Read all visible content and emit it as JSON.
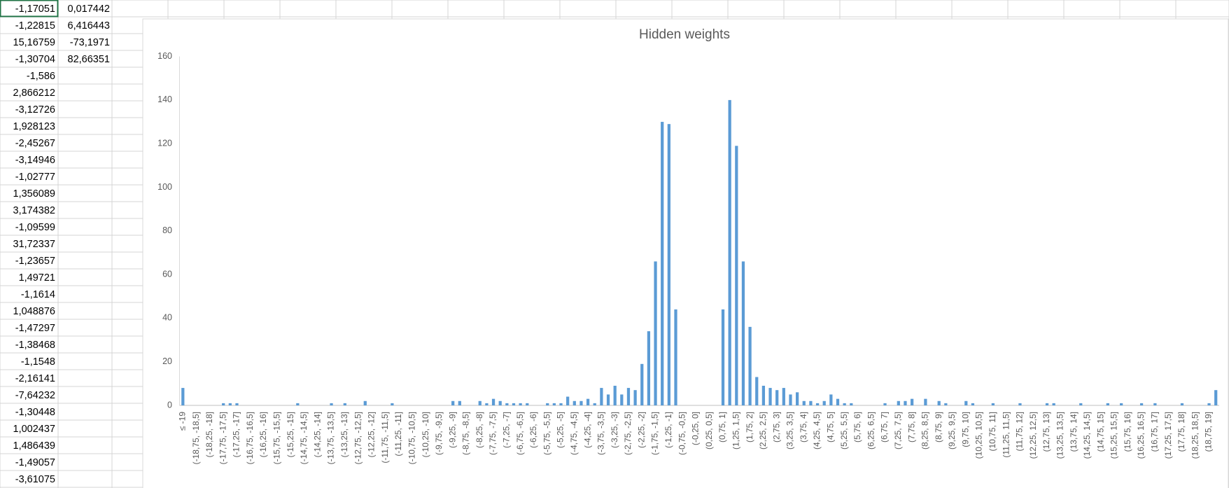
{
  "sheet": {
    "column_a": [
      "-1,17051",
      "-1,22815",
      "15,16759",
      "-1,30704",
      "-1,586",
      "2,866212",
      "-3,12726",
      "1,928123",
      "-2,45267",
      "-3,14946",
      "-1,02777",
      "1,356089",
      "3,174382",
      "-1,09599",
      "31,72337",
      "-1,23657",
      "1,49721",
      "-1,1614",
      "1,048876",
      "-1,47297",
      "-1,38468",
      "-1,1548",
      "-2,16141",
      "-7,64232",
      "-1,30448",
      "1,002437",
      "1,486439",
      "-1,49057",
      "-3,61075"
    ],
    "column_b": [
      "0,017442",
      "6,416443",
      "-73,1971",
      "82,66351"
    ]
  },
  "chart_data": {
    "type": "bar",
    "title": "Hidden weights",
    "color": "#5b9bd5",
    "grid": false,
    "ylim": [
      0,
      160
    ],
    "yticks": [
      0,
      20,
      40,
      60,
      80,
      100,
      120,
      140,
      160
    ],
    "categories": [
      "≤ -19",
      null,
      "(-18,75, -18,5]",
      null,
      "(-18,25, -18]",
      null,
      "(-17,75, -17,5]",
      null,
      "(-17,25, -17]",
      null,
      "(-16,75, -16,5]",
      null,
      "(-16,25, -16]",
      null,
      "(-15,75, -15,5]",
      null,
      "(-15,25, -15]",
      null,
      "(-14,75, -14,5]",
      null,
      "(-14,25, -14]",
      null,
      "(-13,75, -13,5]",
      null,
      "(-13,25, -13]",
      null,
      "(-12,75, -12,5]",
      null,
      "(-12,25, -12]",
      null,
      "(-11,75, -11,5]",
      null,
      "(-11,25, -11]",
      null,
      "(-10,75, -10,5]",
      null,
      "(-10,25, -10]",
      null,
      "(-9,75, -9,5]",
      null,
      "(-9,25, -9]",
      null,
      "(-8,75, -8,5]",
      null,
      "(-8,25, -8]",
      null,
      "(-7,75, -7,5]",
      null,
      "(-7,25, -7]",
      null,
      "(-6,75, -6,5]",
      null,
      "(-6,25, -6]",
      null,
      "(-5,75, -5,5]",
      null,
      "(-5,25, -5]",
      null,
      "(-4,75, -4,5]",
      null,
      "(-4,25, -4]",
      null,
      "(-3,75, -3,5]",
      null,
      "(-3,25, -3]",
      null,
      "(-2,75, -2,5]",
      null,
      "(-2,25, -2]",
      null,
      "(-1,75, -1,5]",
      null,
      "(-1,25, -1]",
      null,
      "(-0,75, -0,5]",
      null,
      "(-0,25, 0]",
      null,
      "(0,25, 0,5]",
      null,
      "(0,75, 1]",
      null,
      "(1,25, 1,5]",
      null,
      "(1,75, 2]",
      null,
      "(2,25, 2,5]",
      null,
      "(2,75, 3]",
      null,
      "(3,25, 3,5]",
      null,
      "(3,75, 4]",
      null,
      "(4,25, 4,5]",
      null,
      "(4,75, 5]",
      null,
      "(5,25, 5,5]",
      null,
      "(5,75, 6]",
      null,
      "(6,25, 6,5]",
      null,
      "(6,75, 7]",
      null,
      "(7,25, 7,5]",
      null,
      "(7,75, 8]",
      null,
      "(8,25, 8,5]",
      null,
      "(8,75, 9]",
      null,
      "(9,25, 9,5]",
      null,
      "(9,75, 10]",
      null,
      "(10,25, 10,5]",
      null,
      "(10,75, 11]",
      null,
      "(11,25, 11,5]",
      null,
      "(11,75, 12]",
      null,
      "(12,25, 12,5]",
      null,
      "(12,75, 13]",
      null,
      "(13,25, 13,5]",
      null,
      "(13,75, 14]",
      null,
      "(14,25, 14,5]",
      null,
      "(14,75, 15]",
      null,
      "(15,25, 15,5]",
      null,
      "(15,75, 16]",
      null,
      "(16,25, 16,5]",
      null,
      "(16,75, 17]",
      null,
      "(17,25, 17,5]",
      null,
      "(17,75, 18]",
      null,
      "(18,25, 18,5]",
      null,
      "(18,75, 19]",
      null
    ],
    "values": [
      8,
      0,
      0,
      0,
      0,
      0,
      1,
      1,
      1,
      0,
      0,
      0,
      0,
      0,
      0,
      0,
      0,
      1,
      0,
      0,
      0,
      0,
      1,
      0,
      1,
      0,
      0,
      2,
      0,
      0,
      0,
      1,
      0,
      0,
      0,
      0,
      0,
      0,
      0,
      0,
      2,
      2,
      0,
      0,
      2,
      1,
      3,
      2,
      1,
      1,
      1,
      1,
      0,
      0,
      1,
      1,
      1,
      4,
      2,
      2,
      3,
      1,
      8,
      5,
      9,
      5,
      8,
      7,
      19,
      34,
      66,
      130,
      129,
      44,
      0,
      0,
      0,
      0,
      0,
      0,
      44,
      140,
      119,
      66,
      36,
      13,
      9,
      8,
      7,
      8,
      5,
      6,
      2,
      2,
      1,
      2,
      5,
      3,
      1,
      1,
      0,
      0,
      0,
      0,
      1,
      0,
      2,
      2,
      3,
      0,
      3,
      0,
      2,
      1,
      0,
      0,
      2,
      1,
      0,
      0,
      1,
      0,
      0,
      0,
      1,
      0,
      0,
      0,
      1,
      1,
      0,
      0,
      0,
      1,
      0,
      0,
      0,
      1,
      0,
      1,
      0,
      0,
      1,
      0,
      1,
      0,
      0,
      0,
      1,
      0,
      0,
      0,
      1,
      7
    ]
  }
}
